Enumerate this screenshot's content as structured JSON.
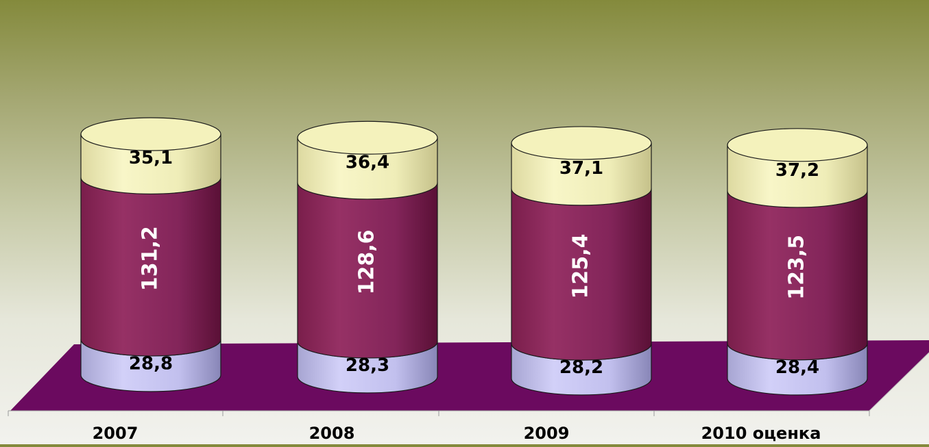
{
  "chart_data": {
    "type": "bar",
    "stacked": true,
    "style": "3d-cylinder",
    "title": "",
    "xlabel": "",
    "ylabel": "",
    "categories": [
      "2007",
      "2008",
      "2009",
      "2010 оценка"
    ],
    "series": [
      {
        "values": [
          28.8,
          28.3,
          28.2,
          28.4
        ],
        "labels": [
          "28,8",
          "28,3",
          "28,2",
          "28,4"
        ],
        "color": "#c9c7f2"
      },
      {
        "values": [
          131.2,
          128.6,
          125.4,
          123.5
        ],
        "labels": [
          "131,2",
          "128,6",
          "125,4",
          "123,5"
        ],
        "color": "#8f2c5c"
      },
      {
        "values": [
          35.1,
          36.4,
          37.1,
          37.2
        ],
        "labels": [
          "35,1",
          "36,4",
          "37,1",
          "37,2"
        ],
        "color": "#f4f2bc"
      }
    ],
    "grid": false,
    "legend": "none",
    "floor_color": "#6b0a5f"
  }
}
